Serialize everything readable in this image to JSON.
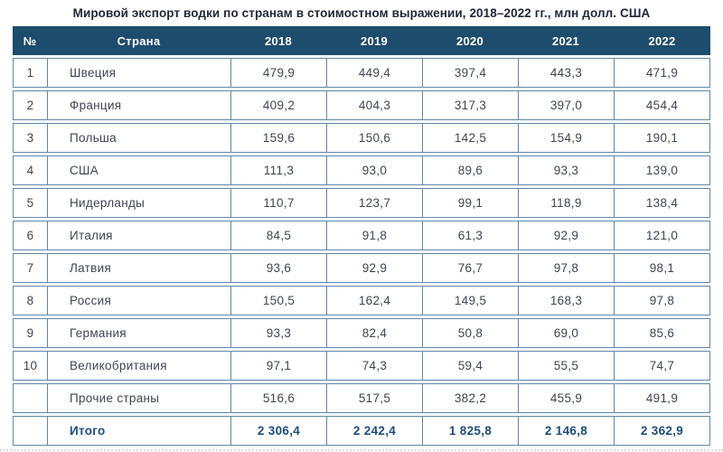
{
  "page": {
    "title": "Мировой экспорт водки по странам в стоимостном выражении, 2018–2022 гг., млн долл. США"
  },
  "chart_data": {
    "type": "table",
    "title": "Мировой экспорт водки по странам в стоимостном выражении, 2018–2022 гг., млн долл. США",
    "unit": "млн долл. США",
    "columns": [
      "№",
      "Страна",
      "2018",
      "2019",
      "2020",
      "2021",
      "2022"
    ],
    "rows": [
      {
        "num": "1",
        "country": "Швеция",
        "values": [
          "479,9",
          "449,4",
          "397,4",
          "443,3",
          "471,9"
        ]
      },
      {
        "num": "2",
        "country": "Франция",
        "values": [
          "409,2",
          "404,3",
          "317,3",
          "397,0",
          "454,4"
        ]
      },
      {
        "num": "3",
        "country": "Польша",
        "values": [
          "159,6",
          "150,6",
          "142,5",
          "154,9",
          "190,1"
        ]
      },
      {
        "num": "4",
        "country": "США",
        "values": [
          "111,3",
          "93,0",
          "89,6",
          "93,3",
          "139,0"
        ]
      },
      {
        "num": "5",
        "country": "Нидерланды",
        "values": [
          "110,7",
          "123,7",
          "99,1",
          "118,9",
          "138,4"
        ]
      },
      {
        "num": "6",
        "country": "Италия",
        "values": [
          "84,5",
          "91,8",
          "61,3",
          "92,9",
          "121,0"
        ]
      },
      {
        "num": "7",
        "country": "Латвия",
        "values": [
          "93,6",
          "92,9",
          "76,7",
          "97,8",
          "98,1"
        ]
      },
      {
        "num": "8",
        "country": "Россия",
        "values": [
          "150,5",
          "162,4",
          "149,5",
          "168,3",
          "97,8"
        ]
      },
      {
        "num": "9",
        "country": "Германия",
        "values": [
          "93,3",
          "82,4",
          "50,8",
          "69,0",
          "85,6"
        ]
      },
      {
        "num": "10",
        "country": "Великобритания",
        "values": [
          "97,1",
          "74,3",
          "59,4",
          "55,5",
          "74,7"
        ]
      },
      {
        "num": "",
        "country": "Прочие страны",
        "values": [
          "516,6",
          "517,5",
          "382,2",
          "455,9",
          "491,9"
        ]
      }
    ],
    "total_row": {
      "num": "",
      "label": "Итого",
      "values": [
        "2 306,4",
        "2 242,4",
        "1 825,8",
        "2 146,8",
        "2 362,9"
      ]
    }
  },
  "colors": {
    "header_bg": "#1e4c6d",
    "cell_border": "#5f87aa",
    "body_text": "#3d4653",
    "total_text": "#1e4e7b",
    "title_text": "#1f2735"
  }
}
